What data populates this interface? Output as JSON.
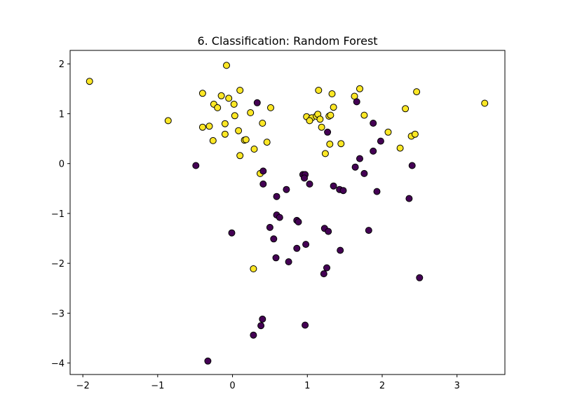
{
  "chart_data": {
    "type": "scatter",
    "title": "6. Classification: Random Forest",
    "xlabel": "",
    "ylabel": "",
    "xlim": [
      -2.17,
      3.64
    ],
    "ylim": [
      -4.23,
      2.27
    ],
    "x_ticks": [
      -2,
      -1,
      0,
      1,
      2,
      3
    ],
    "y_ticks": [
      -4,
      -3,
      -2,
      -1,
      0,
      1,
      2
    ],
    "x_tick_labels": [
      "−2",
      "−1",
      "0",
      "1",
      "2",
      "3"
    ],
    "y_tick_labels": [
      "−4",
      "−3",
      "−2",
      "−1",
      "0",
      "1",
      "2"
    ],
    "grid": false,
    "legend": "none",
    "colors": {
      "class_0": "#440154",
      "class_1": "#fde725",
      "edge": "#000000"
    },
    "series": [
      {
        "class": 1,
        "color": "#fde725",
        "points": [
          [
            -1.91,
            1.65
          ],
          [
            -0.86,
            0.86
          ],
          [
            -0.08,
            1.97
          ],
          [
            -0.4,
            1.41
          ],
          [
            -0.15,
            1.36
          ],
          [
            -0.25,
            1.19
          ],
          [
            -0.2,
            1.12
          ],
          [
            -0.05,
            1.31
          ],
          [
            0.02,
            1.19
          ],
          [
            0.1,
            1.47
          ],
          [
            -0.31,
            0.75
          ],
          [
            -0.4,
            0.73
          ],
          [
            -0.1,
            0.8
          ],
          [
            0.03,
            0.96
          ],
          [
            -0.1,
            0.59
          ],
          [
            -0.26,
            0.46
          ],
          [
            0.08,
            0.66
          ],
          [
            0.16,
            0.47
          ],
          [
            0.18,
            0.48
          ],
          [
            0.24,
            1.02
          ],
          [
            0.4,
            0.81
          ],
          [
            0.51,
            1.12
          ],
          [
            0.46,
            0.43
          ],
          [
            0.29,
            0.29
          ],
          [
            0.1,
            0.16
          ],
          [
            0.37,
            -0.2
          ],
          [
            0.28,
            -2.11
          ],
          [
            1.15,
            1.47
          ],
          [
            1.33,
            1.4
          ],
          [
            1.7,
            1.5
          ],
          [
            1.63,
            1.35
          ],
          [
            0.99,
            0.94
          ],
          [
            1.06,
            0.92
          ],
          [
            1.12,
            0.95
          ],
          [
            1.14,
            0.99
          ],
          [
            1.17,
            0.89
          ],
          [
            1.29,
            0.95
          ],
          [
            1.31,
            0.97
          ],
          [
            1.35,
            1.13
          ],
          [
            1.76,
            0.97
          ],
          [
            1.03,
            0.86
          ],
          [
            1.19,
            0.73
          ],
          [
            2.46,
            1.44
          ],
          [
            2.31,
            1.1
          ],
          [
            3.37,
            1.21
          ],
          [
            2.08,
            0.63
          ],
          [
            2.39,
            0.55
          ],
          [
            2.44,
            0.59
          ],
          [
            2.24,
            0.31
          ],
          [
            1.3,
            0.39
          ],
          [
            1.45,
            0.4
          ],
          [
            1.24,
            0.2
          ]
        ]
      },
      {
        "class": 0,
        "color": "#440154",
        "points": [
          [
            0.33,
            1.22
          ],
          [
            1.66,
            1.24
          ],
          [
            1.88,
            0.81
          ],
          [
            1.27,
            0.63
          ],
          [
            1.98,
            0.45
          ],
          [
            1.88,
            0.25
          ],
          [
            1.7,
            0.1
          ],
          [
            1.64,
            -0.07
          ],
          [
            1.76,
            -0.2
          ],
          [
            2.4,
            -0.04
          ],
          [
            -0.49,
            -0.04
          ],
          [
            0.41,
            -0.15
          ],
          [
            0.94,
            -0.22
          ],
          [
            0.97,
            -0.22
          ],
          [
            0.96,
            -0.29
          ],
          [
            1.03,
            -0.41
          ],
          [
            0.41,
            -0.41
          ],
          [
            1.35,
            -0.45
          ],
          [
            1.43,
            -0.52
          ],
          [
            1.48,
            -0.54
          ],
          [
            0.72,
            -0.52
          ],
          [
            1.93,
            -0.56
          ],
          [
            0.59,
            -0.66
          ],
          [
            2.36,
            -0.7
          ],
          [
            0.59,
            -1.03
          ],
          [
            0.63,
            -1.08
          ],
          [
            0.86,
            -1.14
          ],
          [
            0.88,
            -1.17
          ],
          [
            0.5,
            -1.28
          ],
          [
            1.23,
            -1.3
          ],
          [
            1.28,
            -1.36
          ],
          [
            1.82,
            -1.34
          ],
          [
            -0.01,
            -1.39
          ],
          [
            0.55,
            -1.51
          ],
          [
            0.98,
            -1.62
          ],
          [
            0.86,
            -1.7
          ],
          [
            1.44,
            -1.74
          ],
          [
            0.58,
            -1.89
          ],
          [
            0.75,
            -1.97
          ],
          [
            1.26,
            -2.09
          ],
          [
            1.22,
            -2.21
          ],
          [
            2.5,
            -2.29
          ],
          [
            0.4,
            -3.12
          ],
          [
            0.38,
            -3.25
          ],
          [
            0.97,
            -3.24
          ],
          [
            0.28,
            -3.44
          ],
          [
            -0.33,
            -3.96
          ]
        ]
      }
    ]
  }
}
